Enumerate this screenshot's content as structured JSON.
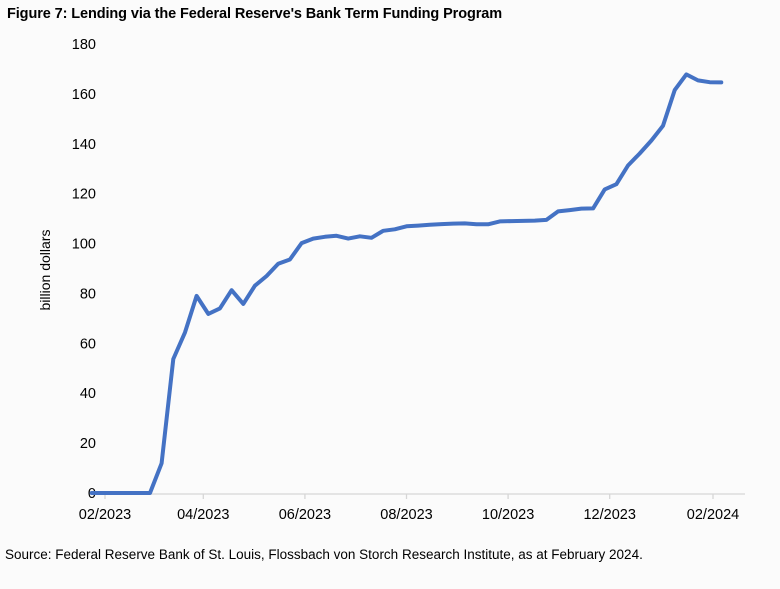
{
  "figure": {
    "title": "Figure 7: Lending via the Federal Reserve's Bank Term Funding Program",
    "source": "Source: Federal Reserve Bank of St. Louis, Flossbach von Storch Research Institute, as at February 2024."
  },
  "chart_data": {
    "type": "line",
    "title": "Figure 7: Lending via the Federal Reserve's Bank Term Funding Program",
    "ylabel": "billion dollars",
    "xlabel": "",
    "ylim": [
      0,
      180
    ],
    "yticks": [
      0,
      20,
      40,
      60,
      80,
      100,
      120,
      140,
      160,
      180
    ],
    "xticks": [
      {
        "label": "02/2023",
        "date": "2023-02-01"
      },
      {
        "label": "04/2023",
        "date": "2023-04-01"
      },
      {
        "label": "06/2023",
        "date": "2023-06-01"
      },
      {
        "label": "08/2023",
        "date": "2023-08-01"
      },
      {
        "label": "10/2023",
        "date": "2023-10-01"
      },
      {
        "label": "12/2023",
        "date": "2023-12-01"
      },
      {
        "label": "02/2024",
        "date": "2024-02-01"
      }
    ],
    "grid": false,
    "legend_position": "none",
    "colors": {
      "line": "#4472C4",
      "axis": "#D6D6D6",
      "text": "#000000",
      "background": "#FBFBFB"
    },
    "series": [
      {
        "points": [
          [
            "2023-02-01",
            0
          ],
          [
            "2023-02-08",
            0
          ],
          [
            "2023-02-15",
            0
          ],
          [
            "2023-02-22",
            0
          ],
          [
            "2023-03-01",
            0
          ],
          [
            "2023-03-08",
            0
          ],
          [
            "2023-03-15",
            11.9
          ],
          [
            "2023-03-22",
            53.7
          ],
          [
            "2023-03-29",
            64.4
          ],
          [
            "2023-04-05",
            79.0
          ],
          [
            "2023-04-12",
            71.8
          ],
          [
            "2023-04-19",
            74.0
          ],
          [
            "2023-04-26",
            81.3
          ],
          [
            "2023-05-03",
            75.8
          ],
          [
            "2023-05-10",
            83.1
          ],
          [
            "2023-05-17",
            87.0
          ],
          [
            "2023-05-24",
            91.9
          ],
          [
            "2023-05-31",
            93.6
          ],
          [
            "2023-06-07",
            100.2
          ],
          [
            "2023-06-14",
            102.0
          ],
          [
            "2023-06-21",
            102.7
          ],
          [
            "2023-06-28",
            103.1
          ],
          [
            "2023-07-05",
            102.0
          ],
          [
            "2023-07-12",
            102.9
          ],
          [
            "2023-07-19",
            102.3
          ],
          [
            "2023-07-26",
            105.1
          ],
          [
            "2023-08-02",
            105.7
          ],
          [
            "2023-08-09",
            106.9
          ],
          [
            "2023-08-16",
            107.2
          ],
          [
            "2023-08-23",
            107.5
          ],
          [
            "2023-08-30",
            107.8
          ],
          [
            "2023-09-06",
            108.0
          ],
          [
            "2023-09-13",
            108.1
          ],
          [
            "2023-09-20",
            107.7
          ],
          [
            "2023-09-27",
            107.7
          ],
          [
            "2023-10-04",
            108.9
          ],
          [
            "2023-10-11",
            109.0
          ],
          [
            "2023-10-18",
            109.1
          ],
          [
            "2023-10-25",
            109.2
          ],
          [
            "2023-11-01",
            109.5
          ],
          [
            "2023-11-08",
            112.9
          ],
          [
            "2023-11-15",
            113.4
          ],
          [
            "2023-11-22",
            114.0
          ],
          [
            "2023-11-29",
            114.1
          ],
          [
            "2023-12-06",
            121.7
          ],
          [
            "2023-12-13",
            123.8
          ],
          [
            "2023-12-20",
            131.3
          ],
          [
            "2023-12-27",
            136.1
          ],
          [
            "2024-01-03",
            141.3
          ],
          [
            "2024-01-10",
            147.2
          ],
          [
            "2024-01-17",
            161.5
          ],
          [
            "2024-01-24",
            167.8
          ],
          [
            "2024-01-31",
            165.4
          ],
          [
            "2024-02-07",
            164.7
          ],
          [
            "2024-02-14",
            164.6
          ]
        ]
      }
    ]
  }
}
